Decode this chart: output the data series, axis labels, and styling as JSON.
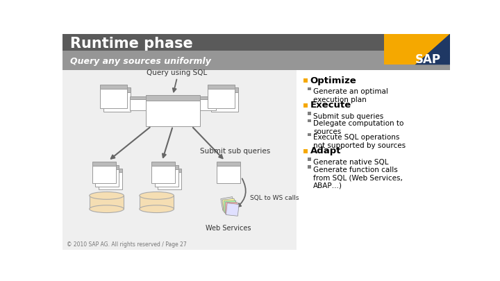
{
  "title": "Runtime phase",
  "subtitle": "Query any sources uniformly",
  "title_color": "#FFFFFF",
  "subtitle_color": "#FFFFFF",
  "header_dark": "#5A5A5A",
  "header_light": "#969696",
  "sap_orange": "#F5A800",
  "sap_blue": "#1F3864",
  "bg_color": "#FFFFFF",
  "left_panel_bg": "#EFEFEF",
  "bullet_orange": "#F5A800",
  "bullet_gray": "#7F7F7F",
  "text_dark": "#000000",
  "optimize_title": "Optimize",
  "optimize_bullets": [
    "Generate an optimal\nexecution plan"
  ],
  "execute_title": "Execute",
  "execute_bullets": [
    "Submit sub queries",
    "Delegate computation to\nsources",
    "Execute SQL operations\nnot supported by sources"
  ],
  "adapt_title": "Adapt",
  "adapt_bullets": [
    "Generate native SQL",
    "Generate function calls\nfrom SQL (Web Services,\nABAP…)"
  ],
  "query_sql_label": "Query using SQL",
  "submit_label": "Submit sub queries",
  "sql_ws_label": "SQL to WS calls",
  "web_services_label": "Web Services",
  "footer_text": "© 2010 SAP AG. All rights reserved / Page 27",
  "folder_color": "#FFFFFF",
  "folder_tab_color": "#BBBBBB",
  "folder_stroke": "#999999",
  "db_fill": "#F5DEB3",
  "db_stroke": "#AAAAAA",
  "arrow_color": "#666666"
}
